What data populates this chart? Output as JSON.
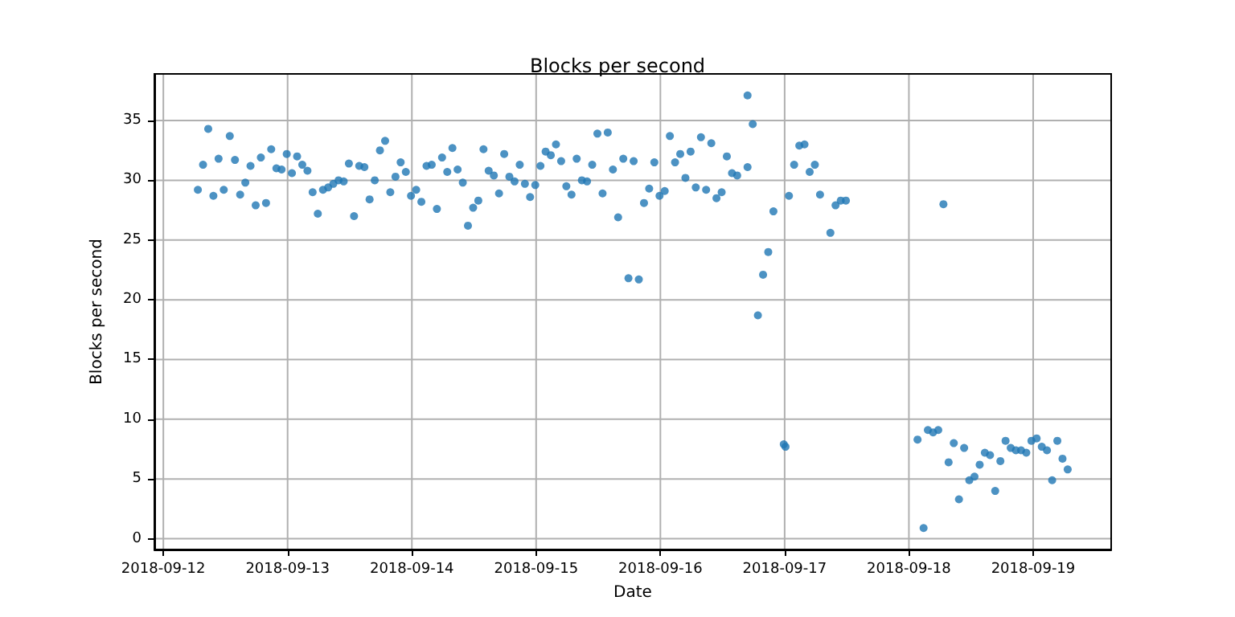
{
  "chart_data": {
    "type": "scatter",
    "title": "Blocks per second",
    "xlabel": "Date",
    "ylabel": "Blocks per second",
    "xlim": [
      "2018-09-11T22:16",
      "2018-09-19T15:04"
    ],
    "ylim": [
      -0.9,
      38.9
    ],
    "xticks": [
      "2018-09-12",
      "2018-09-13",
      "2018-09-14",
      "2018-09-15",
      "2018-09-16",
      "2018-09-17",
      "2018-09-18",
      "2018-09-19"
    ],
    "yticks": [
      0,
      5,
      10,
      15,
      20,
      25,
      30,
      35
    ],
    "grid": true,
    "marker": "circle",
    "series": [
      {
        "color": "#1f77b4",
        "x": [
          "2018-09-12T06:40",
          "2018-09-12T07:40",
          "2018-09-12T08:40",
          "2018-09-12T09:40",
          "2018-09-12T10:40",
          "2018-09-12T11:40",
          "2018-09-12T12:50",
          "2018-09-12T13:50",
          "2018-09-12T14:50",
          "2018-09-12T15:50",
          "2018-09-12T16:50",
          "2018-09-12T17:50",
          "2018-09-12T18:50",
          "2018-09-12T19:50",
          "2018-09-12T20:50",
          "2018-09-12T21:50",
          "2018-09-12T22:50",
          "2018-09-12T23:50",
          "2018-09-13T00:50",
          "2018-09-13T01:50",
          "2018-09-13T02:50",
          "2018-09-13T03:50",
          "2018-09-13T04:50",
          "2018-09-13T05:50",
          "2018-09-13T06:50",
          "2018-09-13T07:50",
          "2018-09-13T08:50",
          "2018-09-13T09:50",
          "2018-09-13T10:50",
          "2018-09-13T11:50",
          "2018-09-13T12:50",
          "2018-09-13T13:50",
          "2018-09-13T14:50",
          "2018-09-13T15:50",
          "2018-09-13T16:50",
          "2018-09-13T17:50",
          "2018-09-13T18:50",
          "2018-09-13T19:50",
          "2018-09-13T20:50",
          "2018-09-13T21:50",
          "2018-09-13T22:50",
          "2018-09-13T23:50",
          "2018-09-14T00:50",
          "2018-09-14T01:50",
          "2018-09-14T02:50",
          "2018-09-14T03:50",
          "2018-09-14T04:50",
          "2018-09-14T05:50",
          "2018-09-14T06:50",
          "2018-09-14T07:50",
          "2018-09-14T08:50",
          "2018-09-14T09:50",
          "2018-09-14T10:50",
          "2018-09-14T11:50",
          "2018-09-14T12:50",
          "2018-09-14T13:50",
          "2018-09-14T14:50",
          "2018-09-14T15:50",
          "2018-09-14T16:50",
          "2018-09-14T17:50",
          "2018-09-14T18:50",
          "2018-09-14T19:50",
          "2018-09-14T20:50",
          "2018-09-14T21:50",
          "2018-09-14T22:50",
          "2018-09-14T23:50",
          "2018-09-15T00:50",
          "2018-09-15T01:50",
          "2018-09-15T02:50",
          "2018-09-15T03:50",
          "2018-09-15T04:50",
          "2018-09-15T05:50",
          "2018-09-15T06:50",
          "2018-09-15T07:50",
          "2018-09-15T08:50",
          "2018-09-15T09:50",
          "2018-09-15T10:50",
          "2018-09-15T11:50",
          "2018-09-15T12:50",
          "2018-09-15T13:50",
          "2018-09-15T14:50",
          "2018-09-15T15:50",
          "2018-09-15T16:50",
          "2018-09-15T17:50",
          "2018-09-15T18:50",
          "2018-09-15T19:50",
          "2018-09-15T20:50",
          "2018-09-15T21:50",
          "2018-09-15T22:50",
          "2018-09-15T23:50",
          "2018-09-16T00:50",
          "2018-09-16T01:50",
          "2018-09-16T02:50",
          "2018-09-16T03:50",
          "2018-09-16T04:50",
          "2018-09-16T05:50",
          "2018-09-16T06:50",
          "2018-09-16T07:50",
          "2018-09-16T08:50",
          "2018-09-16T09:50",
          "2018-09-16T10:50",
          "2018-09-16T11:50",
          "2018-09-16T12:50",
          "2018-09-16T13:50",
          "2018-09-16T14:50",
          "2018-09-16T16:50",
          "2018-09-16T16:50",
          "2018-09-16T17:50",
          "2018-09-16T18:50",
          "2018-09-16T19:50",
          "2018-09-16T20:50",
          "2018-09-16T21:50",
          "2018-09-16T23:50",
          "2018-09-17T00:10",
          "2018-09-17T00:50",
          "2018-09-17T01:50",
          "2018-09-17T02:50",
          "2018-09-17T03:50",
          "2018-09-17T04:50",
          "2018-09-17T05:50",
          "2018-09-17T06:50",
          "2018-09-17T08:50",
          "2018-09-17T09:50",
          "2018-09-17T10:50",
          "2018-09-17T11:50",
          "2018-09-18T01:40",
          "2018-09-18T02:50",
          "2018-09-18T03:40",
          "2018-09-18T04:40",
          "2018-09-18T05:40",
          "2018-09-18T06:40",
          "2018-09-18T07:40",
          "2018-09-18T08:40",
          "2018-09-18T09:40",
          "2018-09-18T10:40",
          "2018-09-18T11:40",
          "2018-09-18T12:40",
          "2018-09-18T13:40",
          "2018-09-18T14:40",
          "2018-09-18T15:40",
          "2018-09-18T16:40",
          "2018-09-18T17:40",
          "2018-09-18T18:40",
          "2018-09-18T19:40",
          "2018-09-18T20:40",
          "2018-09-18T21:40",
          "2018-09-18T22:40",
          "2018-09-18T23:40",
          "2018-09-19T00:40",
          "2018-09-19T01:40",
          "2018-09-19T02:40",
          "2018-09-19T03:40",
          "2018-09-19T04:40",
          "2018-09-19T05:40",
          "2018-09-19T06:40"
        ],
        "values": [
          29.2,
          31.3,
          34.3,
          28.7,
          31.8,
          29.2,
          33.7,
          31.7,
          28.8,
          29.8,
          31.2,
          27.9,
          31.9,
          28.1,
          32.6,
          31.0,
          30.9,
          32.2,
          30.6,
          32.0,
          31.3,
          30.8,
          29.0,
          27.2,
          29.2,
          29.4,
          29.7,
          30.0,
          29.9,
          31.4,
          27.0,
          31.2,
          31.1,
          28.4,
          30.0,
          32.5,
          33.3,
          29.0,
          30.3,
          31.5,
          30.7,
          28.7,
          29.2,
          28.2,
          31.2,
          31.3,
          27.6,
          31.9,
          30.7,
          32.7,
          30.9,
          29.8,
          26.2,
          27.7,
          28.3,
          32.6,
          30.8,
          30.4,
          28.9,
          32.2,
          30.3,
          29.9,
          31.3,
          29.7,
          28.6,
          29.6,
          31.2,
          32.4,
          32.1,
          33.0,
          31.6,
          29.5,
          28.8,
          31.8,
          30.0,
          29.9,
          31.3,
          33.9,
          28.9,
          34.0,
          30.9,
          26.9,
          31.8,
          21.8,
          31.6,
          21.7,
          28.1,
          29.3,
          31.5,
          28.7,
          29.1,
          33.7,
          31.5,
          32.2,
          30.2,
          32.4,
          29.4,
          33.6,
          29.2,
          33.1,
          28.5,
          29.0,
          32.0,
          30.6,
          30.4,
          37.1,
          31.1,
          34.7,
          18.7,
          22.1,
          24.0,
          27.4,
          7.9,
          7.7,
          28.7,
          31.3,
          32.9,
          33.0,
          30.7,
          31.3,
          28.8,
          25.6,
          27.9,
          28.3,
          28.3,
          8.3,
          0.9,
          9.1,
          8.9,
          9.1,
          28.0,
          6.4,
          8.0,
          3.3,
          7.6,
          4.9,
          5.2,
          6.2,
          7.2,
          7.0,
          4.0,
          6.5,
          8.2,
          7.6,
          7.4,
          7.4,
          7.2,
          8.2,
          8.4,
          7.7,
          7.4,
          4.9,
          8.2,
          6.7,
          5.8
        ]
      }
    ]
  }
}
